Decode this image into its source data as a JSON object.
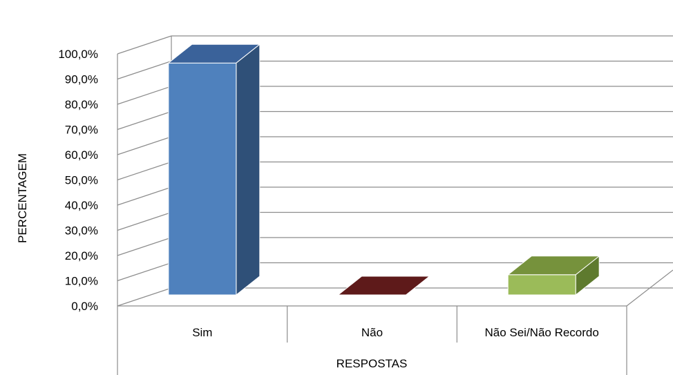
{
  "chart_data": {
    "type": "bar",
    "categories": [
      "Sim",
      "Não",
      "Não Sei/Não Recordo"
    ],
    "values": [
      92.0,
      0.0,
      8.0
    ],
    "colors": {
      "Sim": {
        "front": "#4f81bd",
        "side": "#2f5078",
        "top": "#3a629a"
      },
      "Não": {
        "front": "#6b1f1f",
        "side": "#4a1313",
        "top": "#5e1a1a"
      },
      "Não Sei/Não Recordo": {
        "front": "#9bbb59",
        "side": "#5e7a2e",
        "top": "#76923c"
      }
    },
    "ylim": [
      0,
      100
    ],
    "yticks": [
      "0,0%",
      "10,0%",
      "20,0%",
      "30,0%",
      "40,0%",
      "50,0%",
      "60,0%",
      "70,0%",
      "80,0%",
      "90,0%",
      "100,0%"
    ],
    "ylabel": "PERCENTAGEM",
    "xlabel": "RESPOSTAS",
    "grid": true,
    "style": "3d-column"
  }
}
